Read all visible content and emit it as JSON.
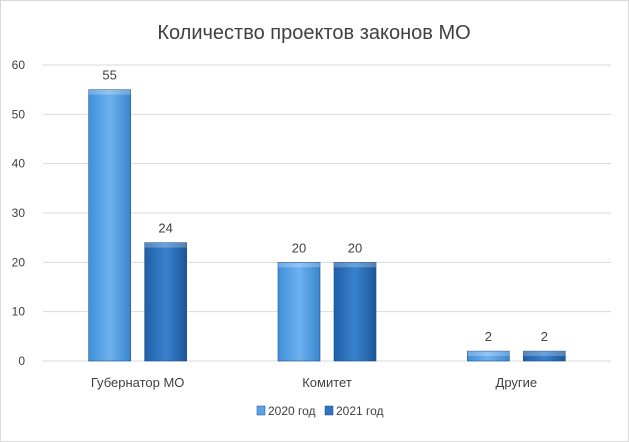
{
  "chart_data": {
    "type": "bar",
    "title": "Количество проектов законов МО",
    "xlabel": "",
    "ylabel": "",
    "categories": [
      "Губернатор МО",
      "Комитет",
      "Другие"
    ],
    "series": [
      {
        "name": "2020 год",
        "values": [
          55,
          20,
          2
        ],
        "color": "#5aa3e6"
      },
      {
        "name": "2021 год",
        "values": [
          24,
          20,
          2
        ],
        "color": "#2f75c0"
      }
    ],
    "ylim": [
      0,
      60
    ],
    "yticks": [
      0,
      10,
      20,
      30,
      40,
      50,
      60
    ],
    "grid": true,
    "legend_position": "bottom"
  }
}
